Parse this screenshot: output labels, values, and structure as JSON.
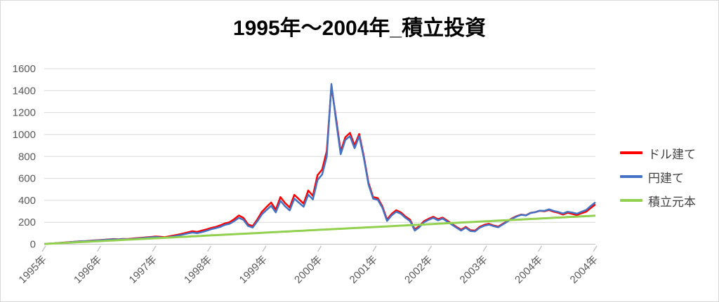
{
  "title": "1995年〜2004年_積立投資",
  "chart_data": {
    "type": "line",
    "title": "1995年〜2004年_積立投資",
    "x_unit": "month",
    "x_range_years": [
      1995,
      2005
    ],
    "x_tick_labels": [
      "1995年",
      "1996年",
      "1997年",
      "1998年",
      "1999年",
      "2000年",
      "2001年",
      "2002年",
      "2003年",
      "2004年",
      "2004年"
    ],
    "y_ticks": [
      0,
      200,
      400,
      600,
      800,
      1000,
      1200,
      1400,
      1600
    ],
    "ylim": [
      0,
      1600
    ],
    "grid": "horizontal",
    "gridline_color": "#d9d9d9",
    "axis_line_color": "#bfbfbf",
    "axis_label_color": "#595959",
    "legend_position": "right",
    "series": [
      {
        "name": "ドル建て",
        "color": "#ff0000",
        "values": [
          2,
          5,
          8,
          11,
          14,
          17,
          21,
          24,
          27,
          29,
          32,
          35,
          38,
          41,
          44,
          47,
          45,
          48,
          47,
          51,
          55,
          58,
          62,
          66,
          70,
          68,
          64,
          72,
          80,
          88,
          98,
          108,
          118,
          112,
          124,
          135,
          148,
          158,
          172,
          190,
          200,
          228,
          262,
          240,
          180,
          165,
          225,
          295,
          340,
          380,
          315,
          430,
          375,
          335,
          450,
          410,
          370,
          490,
          440,
          630,
          680,
          850,
          1440,
          1150,
          845,
          975,
          1015,
          900,
          1005,
          800,
          560,
          430,
          420,
          345,
          225,
          275,
          310,
          290,
          252,
          222,
          135,
          165,
          210,
          232,
          250,
          228,
          242,
          215,
          185,
          158,
          132,
          158,
          128,
          124,
          158,
          176,
          186,
          170,
          160,
          186,
          210,
          236,
          256,
          270,
          264,
          286,
          292,
          304,
          300,
          312,
          296,
          286,
          270,
          286,
          276,
          266,
          282,
          296,
          330,
          362
        ]
      },
      {
        "name": "円建て",
        "color": "#4472c4",
        "values": [
          2,
          5,
          8,
          10,
          13,
          16,
          20,
          23,
          26,
          28,
          30,
          33,
          36,
          39,
          42,
          45,
          43,
          46,
          45,
          48,
          52,
          55,
          58,
          62,
          65,
          62,
          58,
          66,
          72,
          80,
          88,
          98,
          106,
          100,
          110,
          122,
          136,
          146,
          158,
          176,
          186,
          210,
          240,
          222,
          166,
          152,
          208,
          272,
          312,
          350,
          290,
          396,
          346,
          308,
          415,
          378,
          342,
          452,
          408,
          585,
          635,
          800,
          1460,
          1125,
          820,
          950,
          985,
          875,
          985,
          785,
          545,
          415,
          405,
          332,
          212,
          262,
          296,
          278,
          240,
          210,
          124,
          155,
          200,
          222,
          240,
          218,
          234,
          206,
          178,
          150,
          124,
          150,
          120,
          116,
          150,
          168,
          178,
          164,
          154,
          180,
          206,
          232,
          252,
          268,
          262,
          284,
          292,
          306,
          304,
          318,
          303,
          294,
          280,
          296,
          288,
          278,
          296,
          312,
          348,
          382
        ]
      },
      {
        "name": "積立元本",
        "color": "#92d050",
        "values": [
          2.2,
          4.3,
          6.5,
          8.7,
          10.8,
          13,
          15.2,
          17.3,
          19.5,
          21.7,
          23.8,
          26,
          28.2,
          30.3,
          32.5,
          34.7,
          36.8,
          39,
          41.2,
          43.3,
          45.5,
          47.7,
          49.8,
          52,
          54.2,
          56.3,
          58.5,
          60.7,
          62.8,
          65,
          67.2,
          69.3,
          71.5,
          73.7,
          75.8,
          78,
          80.2,
          82.3,
          84.5,
          86.7,
          88.8,
          91,
          93.2,
          95.3,
          97.5,
          99.7,
          101.8,
          104,
          106.2,
          108.3,
          110.5,
          112.7,
          114.8,
          117,
          119.2,
          121.3,
          123.5,
          125.7,
          127.8,
          130,
          132.2,
          134.3,
          136.5,
          138.7,
          140.8,
          143,
          145.2,
          147.3,
          149.5,
          151.7,
          153.8,
          156,
          158.2,
          160.3,
          162.5,
          164.7,
          166.8,
          169,
          171.2,
          173.3,
          175.5,
          177.7,
          179.8,
          182,
          184.2,
          186.3,
          188.5,
          190.7,
          192.8,
          195,
          197.2,
          199.3,
          201.5,
          203.7,
          205.8,
          208,
          210.2,
          212.3,
          214.5,
          216.7,
          218.8,
          221,
          223.2,
          225.3,
          227.5,
          229.7,
          231.8,
          234,
          236.2,
          238.3,
          240.5,
          242.7,
          244.8,
          247,
          249.2,
          251.3,
          253.5,
          255.7,
          257.8,
          260
        ]
      }
    ]
  }
}
